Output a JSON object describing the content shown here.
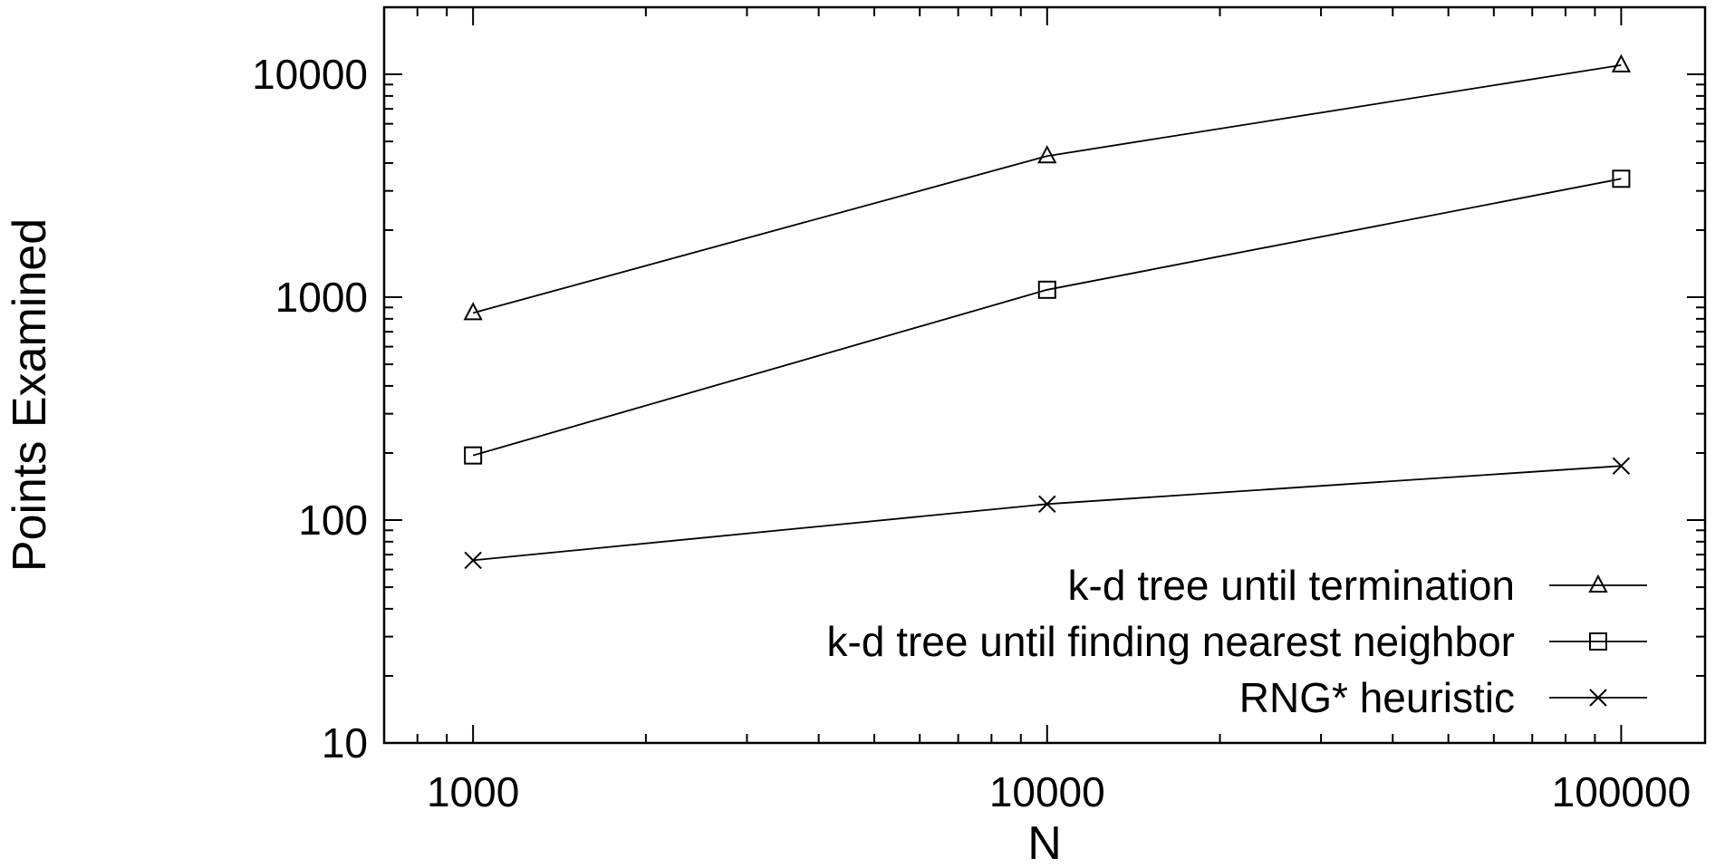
{
  "chart_data": {
    "type": "line",
    "title": "",
    "xlabel": "N",
    "ylabel": "Points Examined",
    "xscale": "log",
    "yscale": "log",
    "xlim": [
      700,
      140000
    ],
    "ylim": [
      10,
      20000
    ],
    "xticks": [
      1000,
      10000,
      100000
    ],
    "xtick_labels": [
      "1000",
      "10000",
      "100000"
    ],
    "yticks": [
      10,
      100,
      1000,
      10000
    ],
    "ytick_labels": [
      "10",
      "100",
      "1000",
      "10000"
    ],
    "x": [
      1000,
      10000,
      100000
    ],
    "grid": false,
    "legend_position": "bottom-right",
    "series": [
      {
        "name": "k-d tree until termination",
        "marker": "triangle",
        "values": [
          850,
          4300,
          11000
        ]
      },
      {
        "name": "k-d tree until finding nearest neighbor",
        "marker": "square",
        "values": [
          195,
          1080,
          3400
        ]
      },
      {
        "name": "RNG* heuristic",
        "marker": "cross",
        "values": [
          66,
          118,
          175
        ]
      }
    ]
  }
}
